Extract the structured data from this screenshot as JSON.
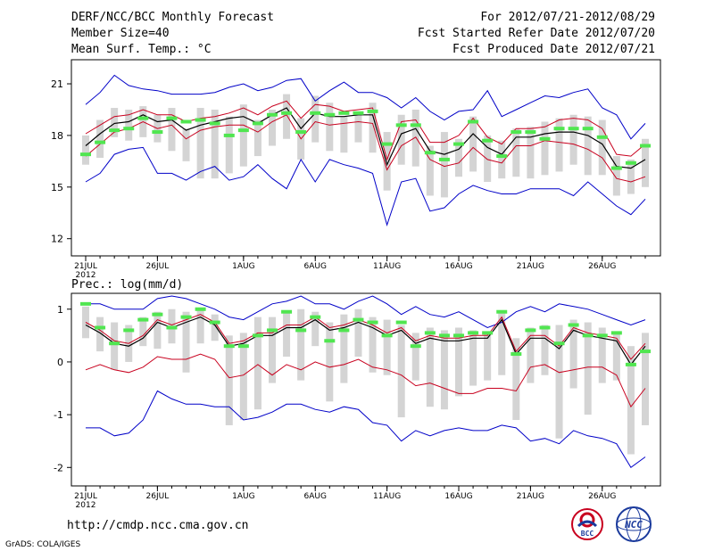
{
  "header": {
    "title": "DERF/NCC/BCC Monthly Forecast",
    "member_size": "Member Size=40",
    "variable": "Mean Surf. Temp.: °C",
    "forecast_range": "For 2012/07/21-2012/08/29",
    "start_date": "Fcst Started Refer Date 2012/07/20",
    "produced_date": "Fcst Produced Date 2012/07/21"
  },
  "footer": {
    "url": "http://cmdp.ncc.cma.gov.cn",
    "credit": "GrADS: COLA/IGES",
    "logo_left": "BCC",
    "logo_right": "NCC"
  },
  "colors": {
    "outer": "#0000c8",
    "inner": "#c8001e",
    "median": "#000000",
    "obs": "#50e650",
    "box": "#d4d4d4"
  },
  "chart_data": [
    {
      "type": "box",
      "title": "Mean Surf. Temp.: °C",
      "ylim": [
        11,
        22.4
      ],
      "yticks": [
        12,
        15,
        18,
        21
      ],
      "grid": false,
      "x": [
        1,
        2,
        3,
        4,
        5,
        6,
        7,
        8,
        9,
        10,
        11,
        12,
        13,
        14,
        15,
        16,
        17,
        18,
        19,
        20,
        21,
        22,
        23,
        24,
        25,
        26,
        27,
        28,
        29,
        30,
        31,
        32,
        33,
        34,
        35,
        36,
        37,
        38,
        39,
        40
      ],
      "xticks": [
        {
          "x": 1,
          "label": "21JUL",
          "sub": "2012"
        },
        {
          "x": 6,
          "label": "26JUL"
        },
        {
          "x": 12,
          "label": "1AUG"
        },
        {
          "x": 17,
          "label": "6AUG"
        },
        {
          "x": 22,
          "label": "11AUG"
        },
        {
          "x": 27,
          "label": "16AUG"
        },
        {
          "x": 32,
          "label": "21AUG"
        },
        {
          "x": 37,
          "label": "26AUG"
        }
      ],
      "series": [
        {
          "name": "ensemble max",
          "role": "outer",
          "values": [
            19.8,
            20.5,
            21.5,
            20.9,
            20.7,
            20.6,
            20.4,
            20.4,
            20.4,
            20.5,
            20.8,
            21.0,
            20.6,
            20.8,
            21.2,
            21.3,
            20.0,
            20.6,
            21.1,
            20.5,
            20.5,
            20.2,
            19.6,
            20.2,
            19.4,
            18.9,
            19.4,
            19.5,
            20.6,
            19.1,
            19.5,
            19.9,
            20.3,
            20.2,
            20.5,
            20.7,
            19.6,
            19.2,
            17.8,
            18.7
          ]
        },
        {
          "name": "ensemble min",
          "role": "outer",
          "values": [
            15.3,
            15.8,
            16.9,
            17.2,
            17.3,
            15.8,
            15.8,
            15.4,
            15.9,
            16.2,
            15.4,
            15.6,
            16.3,
            15.5,
            14.9,
            16.6,
            15.3,
            16.6,
            16.3,
            16.1,
            15.8,
            12.8,
            15.3,
            15.5,
            13.6,
            13.8,
            14.6,
            15.1,
            14.8,
            14.6,
            14.6,
            14.9,
            14.9,
            14.9,
            14.5,
            15.3,
            14.6,
            13.9,
            13.4,
            14.3
          ]
        },
        {
          "name": "upper bound",
          "role": "inner",
          "values": [
            18.1,
            18.6,
            19.1,
            19.2,
            19.5,
            19.2,
            19.2,
            18.8,
            19.0,
            19.1,
            19.3,
            19.6,
            19.2,
            19.7,
            20.0,
            19.0,
            19.8,
            19.7,
            19.4,
            19.5,
            19.6,
            16.6,
            18.8,
            18.9,
            17.6,
            17.6,
            18.0,
            19.0,
            17.9,
            17.5,
            18.4,
            18.4,
            18.5,
            18.9,
            19.0,
            18.9,
            18.4,
            16.9,
            16.8,
            17.5
          ]
        },
        {
          "name": "lower bound",
          "role": "inner",
          "values": [
            16.8,
            17.5,
            18.2,
            18.4,
            18.8,
            18.4,
            18.6,
            17.8,
            18.3,
            18.5,
            18.6,
            18.6,
            18.2,
            18.8,
            19.2,
            17.8,
            18.8,
            18.6,
            18.7,
            18.8,
            18.7,
            16.0,
            17.4,
            17.9,
            16.6,
            16.2,
            16.4,
            17.3,
            16.6,
            16.4,
            17.4,
            17.4,
            17.7,
            17.6,
            17.5,
            17.2,
            16.7,
            15.5,
            15.3,
            15.6
          ]
        },
        {
          "name": "ensemble median",
          "role": "median",
          "values": [
            17.4,
            18.1,
            18.7,
            18.8,
            19.2,
            18.8,
            18.9,
            18.3,
            18.6,
            18.8,
            19.0,
            19.1,
            18.7,
            19.2,
            19.6,
            18.4,
            19.3,
            19.1,
            19.1,
            19.2,
            19.2,
            16.3,
            18.1,
            18.4,
            17.1,
            16.9,
            17.2,
            18.1,
            17.3,
            16.9,
            17.9,
            17.9,
            18.1,
            18.2,
            18.2,
            18.0,
            17.5,
            16.2,
            16.1,
            16.6
          ]
        },
        {
          "name": "box upper",
          "role": "box",
          "values": [
            18.0,
            18.9,
            19.6,
            19.5,
            19.7,
            19.2,
            19.6,
            18.4,
            19.6,
            19.5,
            19.1,
            19.8,
            18.9,
            19.5,
            20.4,
            19.0,
            20.3,
            19.9,
            19.1,
            19.4,
            19.9,
            18.2,
            19.2,
            19.5,
            17.4,
            18.2,
            17.8,
            19.1,
            18.0,
            17.7,
            18.4,
            18.5,
            18.8,
            19.0,
            19.2,
            19.1,
            18.9,
            16.8,
            16.6,
            17.8
          ]
        },
        {
          "name": "box lower",
          "role": "box",
          "values": [
            16.3,
            16.7,
            17.9,
            17.7,
            17.9,
            17.6,
            17.1,
            16.5,
            15.5,
            15.5,
            15.8,
            16.2,
            16.8,
            17.4,
            17.8,
            16.6,
            17.6,
            17.1,
            17.0,
            17.6,
            17.0,
            14.8,
            16.3,
            16.2,
            14.5,
            14.4,
            15.6,
            15.9,
            15.3,
            15.5,
            15.6,
            15.5,
            15.7,
            15.9,
            16.3,
            15.7,
            15.7,
            14.5,
            14.6,
            15.0
          ]
        },
        {
          "name": "observation",
          "role": "obs",
          "values": [
            16.9,
            17.6,
            18.3,
            18.4,
            19.0,
            18.2,
            19.0,
            18.8,
            18.9,
            18.7,
            18.0,
            18.3,
            18.7,
            19.2,
            19.3,
            18.2,
            19.3,
            19.2,
            19.3,
            19.3,
            19.4,
            17.5,
            18.6,
            18.6,
            17.0,
            16.6,
            17.5,
            18.8,
            17.7,
            16.8,
            18.2,
            18.2,
            17.8,
            18.4,
            18.4,
            18.4,
            17.9,
            16.1,
            16.4,
            17.4
          ]
        }
      ]
    },
    {
      "type": "box",
      "title": "Prec.: log(mm/d)",
      "ylim": [
        -2.35,
        1.3
      ],
      "yticks": [
        -2,
        -1,
        0,
        1
      ],
      "grid": false,
      "x": [
        1,
        2,
        3,
        4,
        5,
        6,
        7,
        8,
        9,
        10,
        11,
        12,
        13,
        14,
        15,
        16,
        17,
        18,
        19,
        20,
        21,
        22,
        23,
        24,
        25,
        26,
        27,
        28,
        29,
        30,
        31,
        32,
        33,
        34,
        35,
        36,
        37,
        38,
        39,
        40
      ],
      "xticks": [
        {
          "x": 1,
          "label": "21JUL",
          "sub": "2012"
        },
        {
          "x": 6,
          "label": "26JUL"
        },
        {
          "x": 12,
          "label": "1AUG"
        },
        {
          "x": 17,
          "label": "6AUG"
        },
        {
          "x": 22,
          "label": "11AUG"
        },
        {
          "x": 27,
          "label": "16AUG"
        },
        {
          "x": 32,
          "label": "21AUG"
        },
        {
          "x": 37,
          "label": "26AUG"
        }
      ],
      "series": [
        {
          "name": "ensemble max",
          "role": "outer",
          "values": [
            1.1,
            1.1,
            1.0,
            1.0,
            1.0,
            1.2,
            1.25,
            1.2,
            1.1,
            1.0,
            0.85,
            0.8,
            0.95,
            1.1,
            1.15,
            1.25,
            1.1,
            1.1,
            1.0,
            1.15,
            1.25,
            1.1,
            0.9,
            1.05,
            0.9,
            0.85,
            0.95,
            0.8,
            0.65,
            0.75,
            0.95,
            1.05,
            0.95,
            1.1,
            1.05,
            1.0,
            0.9,
            0.8,
            0.7,
            0.8
          ]
        },
        {
          "name": "ensemble min",
          "role": "outer",
          "values": [
            -1.25,
            -1.25,
            -1.4,
            -1.35,
            -1.1,
            -0.55,
            -0.7,
            -0.8,
            -0.8,
            -0.85,
            -0.85,
            -1.1,
            -1.05,
            -0.95,
            -0.8,
            -0.8,
            -0.9,
            -0.95,
            -0.85,
            -0.9,
            -1.15,
            -1.2,
            -1.5,
            -1.3,
            -1.4,
            -1.3,
            -1.25,
            -1.3,
            -1.3,
            -1.2,
            -1.25,
            -1.5,
            -1.45,
            -1.55,
            -1.3,
            -1.4,
            -1.45,
            -1.55,
            -2.0,
            -1.8
          ]
        },
        {
          "name": "upper bound",
          "role": "inner",
          "values": [
            0.75,
            0.6,
            0.4,
            0.35,
            0.5,
            0.8,
            0.7,
            0.8,
            0.9,
            0.75,
            0.35,
            0.4,
            0.55,
            0.55,
            0.7,
            0.7,
            0.85,
            0.65,
            0.7,
            0.8,
            0.7,
            0.55,
            0.65,
            0.4,
            0.5,
            0.45,
            0.45,
            0.5,
            0.5,
            0.85,
            0.2,
            0.5,
            0.5,
            0.3,
            0.65,
            0.55,
            0.5,
            0.45,
            0.05,
            0.35
          ]
        },
        {
          "name": "lower bound",
          "role": "inner",
          "values": [
            -0.15,
            -0.05,
            -0.15,
            -0.2,
            -0.1,
            0.1,
            0.05,
            0.05,
            0.15,
            0.05,
            -0.3,
            -0.25,
            -0.05,
            -0.25,
            -0.05,
            -0.15,
            0.0,
            -0.1,
            -0.05,
            0.05,
            -0.1,
            -0.15,
            -0.25,
            -0.45,
            -0.4,
            -0.5,
            -0.6,
            -0.6,
            -0.5,
            -0.5,
            -0.55,
            -0.1,
            -0.05,
            -0.2,
            -0.15,
            -0.1,
            -0.1,
            -0.25,
            -0.85,
            -0.5
          ]
        },
        {
          "name": "ensemble median",
          "role": "median",
          "values": [
            0.7,
            0.55,
            0.35,
            0.3,
            0.45,
            0.75,
            0.65,
            0.75,
            0.85,
            0.7,
            0.3,
            0.35,
            0.5,
            0.5,
            0.65,
            0.65,
            0.8,
            0.6,
            0.65,
            0.75,
            0.65,
            0.5,
            0.6,
            0.35,
            0.45,
            0.4,
            0.4,
            0.45,
            0.45,
            0.8,
            0.15,
            0.45,
            0.45,
            0.25,
            0.6,
            0.5,
            0.45,
            0.4,
            -0.05,
            0.3
          ]
        },
        {
          "name": "box upper",
          "role": "box",
          "values": [
            1.05,
            0.85,
            0.75,
            0.7,
            0.85,
            0.95,
            1.0,
            0.95,
            1.0,
            0.9,
            0.5,
            0.55,
            0.85,
            0.85,
            0.95,
            1.0,
            0.95,
            0.75,
            0.9,
            1.0,
            0.85,
            0.8,
            0.7,
            0.55,
            0.65,
            0.6,
            0.65,
            0.6,
            0.55,
            0.95,
            0.45,
            0.65,
            0.7,
            0.7,
            0.8,
            0.75,
            0.65,
            0.55,
            0.3,
            0.55
          ]
        },
        {
          "name": "box lower",
          "role": "box",
          "values": [
            0.45,
            0.2,
            -0.15,
            0.0,
            0.3,
            0.25,
            0.35,
            -0.2,
            0.35,
            0.4,
            -1.2,
            -1.1,
            -0.9,
            -0.4,
            0.1,
            -0.35,
            0.3,
            -0.75,
            -0.4,
            0.1,
            -0.2,
            -0.25,
            -1.05,
            -0.35,
            -0.85,
            -0.9,
            -0.65,
            -0.45,
            -0.35,
            -0.25,
            -1.1,
            -0.4,
            -0.25,
            -1.45,
            -0.5,
            -1.0,
            -0.4,
            -0.35,
            -1.75,
            -1.2
          ]
        },
        {
          "name": "observation",
          "role": "obs",
          "values": [
            1.1,
            0.65,
            0.35,
            0.6,
            0.8,
            0.9,
            0.65,
            0.85,
            1.0,
            0.75,
            0.3,
            0.3,
            0.5,
            0.6,
            0.95,
            0.6,
            0.85,
            0.4,
            0.6,
            0.8,
            0.75,
            0.5,
            0.75,
            0.3,
            0.55,
            0.5,
            0.5,
            0.55,
            0.55,
            0.95,
            0.15,
            0.6,
            0.65,
            0.35,
            0.7,
            0.5,
            0.5,
            0.55,
            -0.05,
            0.2
          ]
        }
      ]
    }
  ]
}
